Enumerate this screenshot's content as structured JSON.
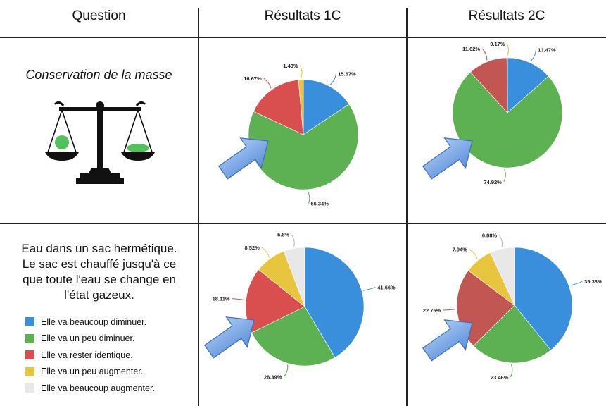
{
  "headers": {
    "question": "Question",
    "col1": "Résultats 1C",
    "col2": "Résultats 2C"
  },
  "row1": {
    "question": "Conservation de la masse"
  },
  "row2": {
    "question_lines": [
      "Eau dans un sac hermétique.",
      "Le sac est chauffé jusqu'à ce",
      "que toute l'eau se change en",
      "l'état gazeux."
    ]
  },
  "legend": [
    {
      "label": "Elle va beaucoup diminuer.",
      "color": "#3a8fdd"
    },
    {
      "label": "Elle va un peu diminuer.",
      "color": "#5db152"
    },
    {
      "label": "Elle va rester identique.",
      "color": "#d94f4f"
    },
    {
      "label": "Elle va un peu augmenter.",
      "color": "#e8c53e"
    },
    {
      "label": "Elle va beaucoup augmenter.",
      "color": "#e8e8e8"
    }
  ],
  "chart_data": [
    {
      "type": "pie",
      "name": "Conservation de la masse — Résultats 1C",
      "values": [
        15.67,
        66.34,
        16.67,
        1.43
      ],
      "labels": [
        "15.67%",
        "66.34%",
        "16.67%",
        "1.43%"
      ],
      "colors": [
        "#3a8fdd",
        "#5db152",
        "#d94f4f",
        "#e8c53e"
      ]
    },
    {
      "type": "pie",
      "name": "Conservation de la masse — Résultats 2C",
      "values": [
        13.47,
        74.92,
        11.62,
        0.17
      ],
      "labels": [
        "13.47%",
        "74.92%",
        "11.62%",
        "0.17%"
      ],
      "colors": [
        "#3a8fdd",
        "#5db152",
        "#c25653",
        "#e8c53e"
      ]
    },
    {
      "type": "pie",
      "name": "Eau dans un sac hermétique — Résultats 1C",
      "values": [
        41.66,
        26.39,
        18.11,
        8.52,
        5.8
      ],
      "labels": [
        "41.66%",
        "26.39%",
        "18.11%",
        "8.52%",
        "5.8%"
      ],
      "colors": [
        "#3a8fdd",
        "#5db152",
        "#d94f4f",
        "#e8c53e",
        "#e8e8e8"
      ]
    },
    {
      "type": "pie",
      "name": "Eau dans un sac hermétique — Résultats 2C",
      "values": [
        39.33,
        23.46,
        22.75,
        7.94,
        6.88
      ],
      "labels": [
        "39.33%",
        "23.46%",
        "22.75%",
        "7.94%",
        "6.88%"
      ],
      "colors": [
        "#3a8fdd",
        "#5db152",
        "#c25653",
        "#e8c53e",
        "#e8e8e8"
      ]
    }
  ]
}
